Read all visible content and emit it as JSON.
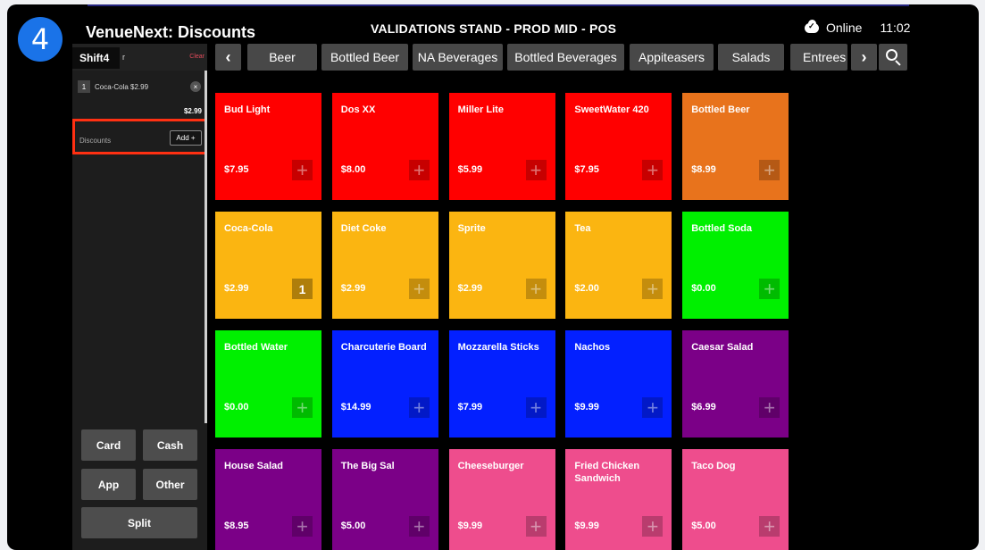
{
  "step_number": "4",
  "header": {
    "app_title": "VenueNext: Discounts",
    "stand_title": "VALIDATIONS STAND - PROD MID - POS",
    "status": "Online",
    "time": "11:02"
  },
  "sidebar": {
    "shift_tab": "Shift4",
    "order_label": "r",
    "clear_label": "Clear",
    "line_item": {
      "qty": "1",
      "text": "Coca-Cola $2.99",
      "remove": "×"
    },
    "subtotal": "$2.99",
    "discounts_label": "Discounts",
    "add_label": "Add +",
    "payment_buttons": {
      "card": "Card",
      "cash": "Cash",
      "app": "App",
      "other": "Other",
      "split": "Split"
    }
  },
  "categories": {
    "prev": "‹",
    "next": "›",
    "items": [
      "Beer",
      "Bottled Beer",
      "NA Beverages",
      "Bottled Beverages",
      "Appiteasers",
      "Salads",
      "Entrees"
    ]
  },
  "colors": {
    "red": "#ff0000",
    "orange": "#e8731c",
    "yellow": "#fbb511",
    "green": "#00f000",
    "blue": "#0320ff",
    "purple": "#7b0087",
    "pink": "#ee4d8d"
  },
  "tiles": [
    {
      "name": "Bud Light",
      "price": "$7.95",
      "color": "red",
      "count": ""
    },
    {
      "name": "Dos XX",
      "price": "$8.00",
      "color": "red",
      "count": ""
    },
    {
      "name": "Miller Lite",
      "price": "$5.99",
      "color": "red",
      "count": ""
    },
    {
      "name": "SweetWater 420",
      "price": "$7.95",
      "color": "red",
      "count": ""
    },
    {
      "name": "Bottled Beer",
      "price": "$8.99",
      "color": "orange",
      "count": ""
    },
    {
      "name": "Coca-Cola",
      "price": "$2.99",
      "color": "yellow",
      "count": "1"
    },
    {
      "name": "Diet Coke",
      "price": "$2.99",
      "color": "yellow",
      "count": ""
    },
    {
      "name": "Sprite",
      "price": "$2.99",
      "color": "yellow",
      "count": ""
    },
    {
      "name": "Tea",
      "price": "$2.00",
      "color": "yellow",
      "count": ""
    },
    {
      "name": "Bottled Soda",
      "price": "$0.00",
      "color": "green",
      "count": ""
    },
    {
      "name": "Bottled Water",
      "price": "$0.00",
      "color": "green",
      "count": ""
    },
    {
      "name": "Charcuterie Board",
      "price": "$14.99",
      "color": "blue",
      "count": ""
    },
    {
      "name": "Mozzarella Sticks",
      "price": "$7.99",
      "color": "blue",
      "count": ""
    },
    {
      "name": "Nachos",
      "price": "$9.99",
      "color": "blue",
      "count": ""
    },
    {
      "name": "Caesar Salad",
      "price": "$6.99",
      "color": "purple",
      "count": ""
    },
    {
      "name": "House Salad",
      "price": "$8.95",
      "color": "purple",
      "count": ""
    },
    {
      "name": "The Big Sal",
      "price": "$5.00",
      "color": "purple",
      "count": ""
    },
    {
      "name": "Cheeseburger",
      "price": "$9.99",
      "color": "pink",
      "count": ""
    },
    {
      "name": "Fried Chicken Sandwich",
      "price": "$9.99",
      "color": "pink",
      "count": ""
    },
    {
      "name": "Taco Dog",
      "price": "$5.00",
      "color": "pink",
      "count": ""
    }
  ]
}
